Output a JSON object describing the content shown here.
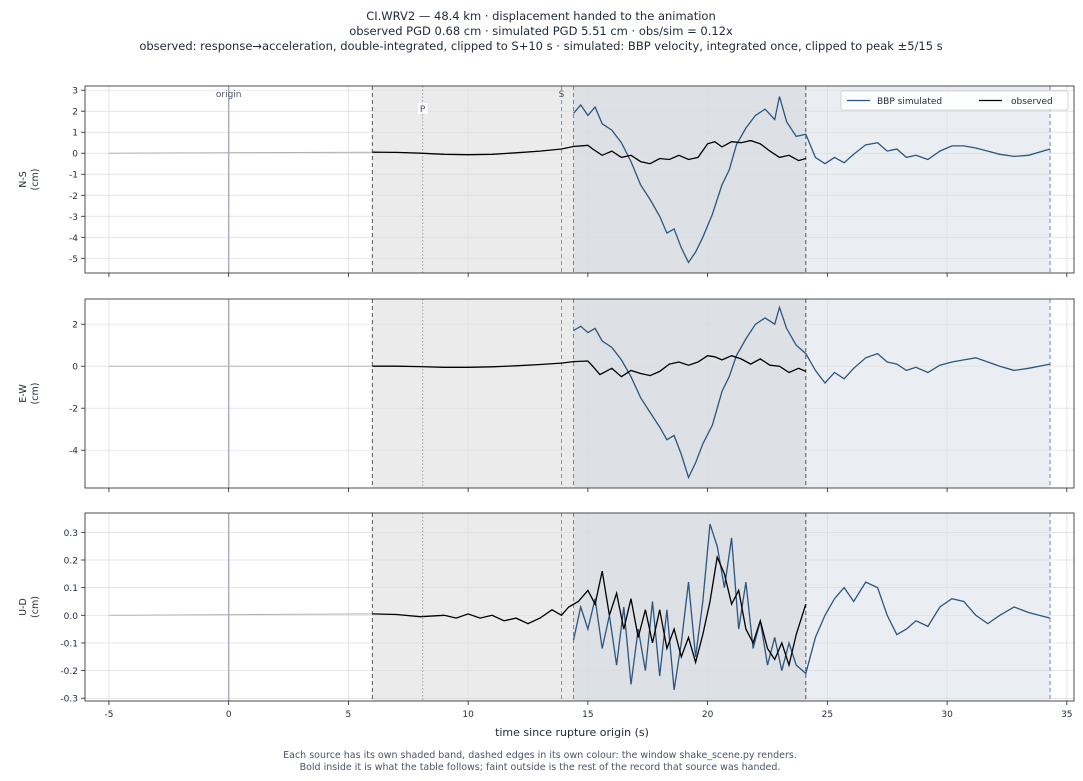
{
  "title_lines": [
    "CI.WRV2  —  48.4 km   ·   displacement handed to the animation",
    "observed PGD 0.68 cm   ·   simulated PGD 5.51 cm   ·   obs/sim = 0.12x",
    "observed: response→acceleration, double-integrated, clipped to S+10 s   ·   simulated: BBP velocity, integrated once, clipped to peak ±5/15 s"
  ],
  "footer_lines": [
    "Each source has its own shaded band, dashed edges in its own colour: the window shake_scene.py renders.",
    "Bold inside it is what the table follows;   faint outside is the rest of the record that source was handed."
  ],
  "colors": {
    "simulated": "#2c5680",
    "observed": "#000000",
    "obs_band": "#ebebeb",
    "sim_band": "#e3e8ee",
    "origin_line": "#a9a9c4"
  },
  "chart_data": {
    "type": "line",
    "xlabel": "time since rupture origin (s)",
    "xlim": [
      -6,
      35.3
    ],
    "xticks": [
      -5,
      0,
      5,
      10,
      15,
      20,
      25,
      30,
      35
    ],
    "legend": {
      "placement": "top-right",
      "entries": [
        "BBP simulated",
        "observed"
      ]
    },
    "markers": [
      {
        "label": "origin",
        "t": 0
      },
      {
        "label": "P",
        "t": 8.1
      },
      {
        "label": "S",
        "t": 13.9
      }
    ],
    "bands": {
      "observed": [
        6.0,
        24.1
      ],
      "simulated": [
        14.4,
        34.3
      ]
    },
    "panels": [
      {
        "ylabel": [
          "N-S",
          "(cm)"
        ],
        "ylim": [
          -5.7,
          3.2
        ],
        "yticks": [
          -5,
          -4,
          -3,
          -2,
          -1,
          0,
          1,
          2,
          3
        ],
        "observed": [
          [
            -5,
            0
          ],
          [
            6.0,
            0.05
          ],
          [
            7,
            0.04
          ],
          [
            8,
            0.0
          ],
          [
            9,
            -0.05
          ],
          [
            10,
            -0.07
          ],
          [
            11,
            -0.05
          ],
          [
            12,
            0.02
          ],
          [
            13,
            0.1
          ],
          [
            13.9,
            0.2
          ],
          [
            14.4,
            0.32
          ],
          [
            15,
            0.38
          ],
          [
            15.2,
            0.2
          ],
          [
            15.6,
            -0.1
          ],
          [
            16,
            0.1
          ],
          [
            16.4,
            -0.2
          ],
          [
            16.8,
            -0.1
          ],
          [
            17.2,
            -0.4
          ],
          [
            17.6,
            -0.5
          ],
          [
            18,
            -0.25
          ],
          [
            18.4,
            -0.3
          ],
          [
            18.8,
            -0.1
          ],
          [
            19.2,
            -0.3
          ],
          [
            19.6,
            -0.2
          ],
          [
            20,
            0.45
          ],
          [
            20.3,
            0.55
          ],
          [
            20.6,
            0.3
          ],
          [
            21,
            0.55
          ],
          [
            21.4,
            0.5
          ],
          [
            21.8,
            0.6
          ],
          [
            22.2,
            0.45
          ],
          [
            22.6,
            0.1
          ],
          [
            23,
            -0.2
          ],
          [
            23.4,
            -0.1
          ],
          [
            23.8,
            -0.35
          ],
          [
            24.1,
            -0.25
          ]
        ],
        "simulated": [
          [
            14.4,
            1.9
          ],
          [
            14.7,
            2.3
          ],
          [
            15.0,
            1.8
          ],
          [
            15.3,
            2.2
          ],
          [
            15.6,
            1.4
          ],
          [
            16.0,
            1.1
          ],
          [
            16.4,
            0.5
          ],
          [
            16.8,
            -0.4
          ],
          [
            17.2,
            -1.5
          ],
          [
            17.6,
            -2.2
          ],
          [
            18.0,
            -3.0
          ],
          [
            18.3,
            -3.8
          ],
          [
            18.6,
            -3.6
          ],
          [
            18.9,
            -4.5
          ],
          [
            19.2,
            -5.2
          ],
          [
            19.5,
            -4.7
          ],
          [
            19.8,
            -4.0
          ],
          [
            20.2,
            -2.9
          ],
          [
            20.6,
            -1.5
          ],
          [
            20.9,
            -0.8
          ],
          [
            21.2,
            0.4
          ],
          [
            21.6,
            1.2
          ],
          [
            22.0,
            1.8
          ],
          [
            22.4,
            2.1
          ],
          [
            22.8,
            1.6
          ],
          [
            23.0,
            2.7
          ],
          [
            23.3,
            1.5
          ],
          [
            23.7,
            0.8
          ],
          [
            24.1,
            0.9
          ],
          [
            24.5,
            -0.2
          ],
          [
            24.9,
            -0.5
          ],
          [
            25.3,
            -0.2
          ],
          [
            25.7,
            -0.45
          ],
          [
            26.1,
            -0.05
          ],
          [
            26.6,
            0.4
          ],
          [
            27.1,
            0.5
          ],
          [
            27.5,
            0.1
          ],
          [
            27.9,
            0.2
          ],
          [
            28.3,
            -0.2
          ],
          [
            28.7,
            -0.1
          ],
          [
            29.2,
            -0.3
          ],
          [
            29.7,
            0.1
          ],
          [
            30.2,
            0.35
          ],
          [
            30.7,
            0.35
          ],
          [
            31.2,
            0.25
          ],
          [
            31.7,
            0.1
          ],
          [
            32.2,
            -0.05
          ],
          [
            32.8,
            -0.15
          ],
          [
            33.4,
            -0.1
          ],
          [
            34.3,
            0.2
          ]
        ]
      },
      {
        "ylabel": [
          "E-W",
          "(cm)"
        ],
        "ylim": [
          -5.8,
          3.2
        ],
        "yticks": [
          -4,
          -2,
          0,
          2
        ],
        "observed": [
          [
            -5,
            0
          ],
          [
            6.0,
            0.0
          ],
          [
            7,
            0.0
          ],
          [
            8,
            -0.02
          ],
          [
            9,
            -0.05
          ],
          [
            10,
            -0.05
          ],
          [
            11,
            -0.03
          ],
          [
            12,
            0.02
          ],
          [
            13,
            0.08
          ],
          [
            13.9,
            0.15
          ],
          [
            14.4,
            0.22
          ],
          [
            15,
            0.25
          ],
          [
            15.2,
            0.0
          ],
          [
            15.5,
            -0.4
          ],
          [
            16,
            -0.1
          ],
          [
            16.4,
            -0.5
          ],
          [
            16.8,
            -0.2
          ],
          [
            17.2,
            -0.35
          ],
          [
            17.6,
            -0.45
          ],
          [
            18,
            -0.25
          ],
          [
            18.4,
            0.1
          ],
          [
            18.8,
            0.2
          ],
          [
            19.2,
            0.05
          ],
          [
            19.6,
            0.2
          ],
          [
            20,
            0.5
          ],
          [
            20.3,
            0.45
          ],
          [
            20.6,
            0.3
          ],
          [
            21,
            0.5
          ],
          [
            21.4,
            0.35
          ],
          [
            21.8,
            0.1
          ],
          [
            22.2,
            0.35
          ],
          [
            22.6,
            0.05
          ],
          [
            23,
            0.0
          ],
          [
            23.4,
            -0.3
          ],
          [
            23.8,
            -0.1
          ],
          [
            24.1,
            -0.25
          ]
        ],
        "simulated": [
          [
            14.4,
            1.7
          ],
          [
            14.7,
            1.9
          ],
          [
            15.0,
            1.6
          ],
          [
            15.3,
            1.8
          ],
          [
            15.6,
            1.2
          ],
          [
            16.0,
            0.9
          ],
          [
            16.4,
            0.3
          ],
          [
            16.8,
            -0.5
          ],
          [
            17.2,
            -1.5
          ],
          [
            17.6,
            -2.2
          ],
          [
            18.0,
            -2.9
          ],
          [
            18.3,
            -3.5
          ],
          [
            18.6,
            -3.3
          ],
          [
            18.9,
            -4.2
          ],
          [
            19.2,
            -5.3
          ],
          [
            19.5,
            -4.6
          ],
          [
            19.8,
            -3.7
          ],
          [
            20.2,
            -2.8
          ],
          [
            20.6,
            -1.2
          ],
          [
            20.9,
            -0.5
          ],
          [
            21.2,
            0.5
          ],
          [
            21.6,
            1.3
          ],
          [
            22.0,
            2.0
          ],
          [
            22.4,
            2.3
          ],
          [
            22.8,
            2.0
          ],
          [
            23.0,
            2.8
          ],
          [
            23.3,
            1.8
          ],
          [
            23.7,
            1.0
          ],
          [
            24.1,
            0.6
          ],
          [
            24.5,
            -0.2
          ],
          [
            24.9,
            -0.8
          ],
          [
            25.3,
            -0.3
          ],
          [
            25.7,
            -0.6
          ],
          [
            26.1,
            -0.1
          ],
          [
            26.6,
            0.4
          ],
          [
            27.1,
            0.6
          ],
          [
            27.5,
            0.2
          ],
          [
            27.9,
            0.1
          ],
          [
            28.3,
            -0.2
          ],
          [
            28.7,
            -0.05
          ],
          [
            29.2,
            -0.3
          ],
          [
            29.7,
            0.05
          ],
          [
            30.2,
            0.2
          ],
          [
            30.7,
            0.3
          ],
          [
            31.2,
            0.4
          ],
          [
            31.7,
            0.2
          ],
          [
            32.2,
            0.0
          ],
          [
            32.8,
            -0.2
          ],
          [
            33.4,
            -0.1
          ],
          [
            34.3,
            0.1
          ]
        ]
      },
      {
        "ylabel": [
          "U-D",
          "(cm)"
        ],
        "ylim": [
          -0.31,
          0.37
        ],
        "yticks": [
          -0.3,
          -0.2,
          -0.1,
          0.0,
          0.1,
          0.2,
          0.3
        ],
        "observed": [
          [
            -5,
            0
          ],
          [
            6.0,
            0.005
          ],
          [
            7,
            0.003
          ],
          [
            8,
            -0.005
          ],
          [
            9,
            0.0
          ],
          [
            9.5,
            -0.01
          ],
          [
            10,
            0.005
          ],
          [
            10.5,
            -0.01
          ],
          [
            11,
            0.0
          ],
          [
            11.5,
            -0.02
          ],
          [
            12,
            -0.01
          ],
          [
            12.5,
            -0.03
          ],
          [
            13,
            -0.01
          ],
          [
            13.5,
            0.02
          ],
          [
            13.9,
            0.0
          ],
          [
            14.2,
            0.03
          ],
          [
            14.6,
            0.05
          ],
          [
            15.0,
            0.09
          ],
          [
            15.3,
            0.04
          ],
          [
            15.6,
            0.16
          ],
          [
            15.9,
            0.0
          ],
          [
            16.2,
            0.08
          ],
          [
            16.5,
            -0.05
          ],
          [
            16.8,
            0.06
          ],
          [
            17.1,
            -0.08
          ],
          [
            17.4,
            0.02
          ],
          [
            17.7,
            -0.1
          ],
          [
            18.0,
            0.02
          ],
          [
            18.3,
            -0.12
          ],
          [
            18.6,
            -0.05
          ],
          [
            18.9,
            -0.15
          ],
          [
            19.2,
            -0.08
          ],
          [
            19.5,
            -0.17
          ],
          [
            19.8,
            -0.07
          ],
          [
            20.1,
            0.05
          ],
          [
            20.4,
            0.21
          ],
          [
            20.7,
            0.15
          ],
          [
            21.0,
            0.04
          ],
          [
            21.3,
            0.09
          ],
          [
            21.6,
            -0.05
          ],
          [
            21.9,
            -0.1
          ],
          [
            22.2,
            -0.02
          ],
          [
            22.5,
            -0.12
          ],
          [
            22.8,
            -0.16
          ],
          [
            23.1,
            -0.1
          ],
          [
            23.4,
            -0.18
          ],
          [
            23.7,
            -0.07
          ],
          [
            24.1,
            0.04
          ]
        ],
        "simulated": [
          [
            14.4,
            -0.09
          ],
          [
            14.7,
            0.03
          ],
          [
            15.0,
            -0.05
          ],
          [
            15.3,
            0.06
          ],
          [
            15.6,
            -0.12
          ],
          [
            15.9,
            0.0
          ],
          [
            16.2,
            -0.18
          ],
          [
            16.5,
            0.03
          ],
          [
            16.8,
            -0.25
          ],
          [
            17.1,
            -0.05
          ],
          [
            17.4,
            -0.2
          ],
          [
            17.7,
            0.05
          ],
          [
            18.0,
            -0.22
          ],
          [
            18.3,
            0.02
          ],
          [
            18.6,
            -0.27
          ],
          [
            18.9,
            -0.1
          ],
          [
            19.2,
            0.12
          ],
          [
            19.5,
            -0.15
          ],
          [
            19.8,
            0.05
          ],
          [
            20.1,
            0.33
          ],
          [
            20.4,
            0.25
          ],
          [
            20.7,
            0.1
          ],
          [
            21.0,
            0.28
          ],
          [
            21.3,
            -0.05
          ],
          [
            21.6,
            0.12
          ],
          [
            21.9,
            -0.12
          ],
          [
            22.2,
            -0.02
          ],
          [
            22.5,
            -0.18
          ],
          [
            22.8,
            -0.08
          ],
          [
            23.1,
            -0.2
          ],
          [
            23.4,
            -0.1
          ],
          [
            23.7,
            -0.18
          ],
          [
            24.1,
            -0.21
          ],
          [
            24.5,
            -0.08
          ],
          [
            24.9,
            0.0
          ],
          [
            25.3,
            0.06
          ],
          [
            25.7,
            0.1
          ],
          [
            26.1,
            0.05
          ],
          [
            26.6,
            0.12
          ],
          [
            27.1,
            0.1
          ],
          [
            27.5,
            0.0
          ],
          [
            27.9,
            -0.07
          ],
          [
            28.3,
            -0.05
          ],
          [
            28.7,
            -0.02
          ],
          [
            29.2,
            -0.04
          ],
          [
            29.7,
            0.03
          ],
          [
            30.2,
            0.06
          ],
          [
            30.7,
            0.05
          ],
          [
            31.2,
            0.0
          ],
          [
            31.7,
            -0.03
          ],
          [
            32.2,
            0.0
          ],
          [
            32.8,
            0.03
          ],
          [
            33.4,
            0.01
          ],
          [
            34.3,
            -0.01
          ]
        ]
      }
    ]
  }
}
